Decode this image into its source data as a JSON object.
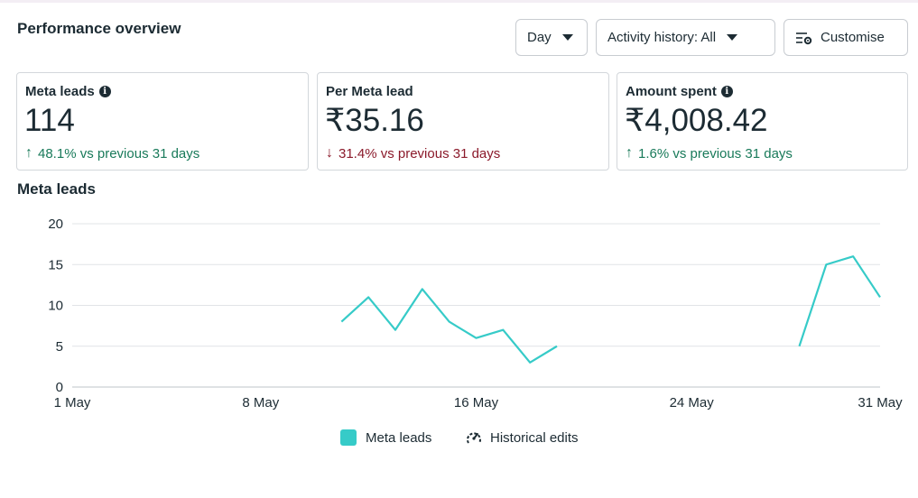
{
  "header": {
    "title": "Performance overview",
    "day_label": "Day",
    "activity_label": "Activity history: All",
    "customise_label": "Customise"
  },
  "cards": [
    {
      "label": "Meta leads",
      "value": "114",
      "delta": "48.1% vs previous 31 days",
      "direction": "up"
    },
    {
      "label": "Per Meta lead",
      "value": "₹35.16",
      "delta": "31.4% vs previous 31 days",
      "direction": "down"
    },
    {
      "label": "Amount spent",
      "value": "₹4,008.42",
      "delta": "1.6% vs previous 31 days",
      "direction": "up"
    }
  ],
  "colors": {
    "series": "#36cbc8",
    "up": "#197a5a",
    "down": "#8b1a2b"
  },
  "chart_data": {
    "type": "line",
    "title": "Meta leads",
    "x_tick_labels": [
      "1 May",
      "8 May",
      "16 May",
      "24 May",
      "31 May"
    ],
    "x_tick_days": [
      1,
      8,
      16,
      24,
      31
    ],
    "y_ticks": [
      0,
      5,
      10,
      15,
      20
    ],
    "ylim": [
      0,
      20
    ],
    "xlim": [
      1,
      31
    ],
    "grid": true,
    "legend_position": "bottom",
    "series": [
      {
        "name": "Meta leads",
        "segments": [
          {
            "x": [
              11,
              12,
              13,
              14,
              15,
              16,
              17,
              18,
              19
            ],
            "y": [
              8,
              11,
              7,
              12,
              8,
              6,
              7,
              3,
              5
            ]
          },
          {
            "x": [
              28,
              29,
              30,
              31
            ],
            "y": [
              5,
              15,
              16,
              11
            ]
          }
        ]
      }
    ],
    "legend": [
      "Meta leads",
      "Historical edits"
    ]
  }
}
